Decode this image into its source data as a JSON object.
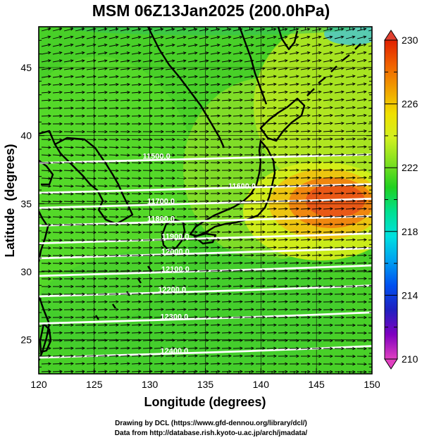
{
  "title": "MSM 06Z13Jan2025 (200.0hPa)",
  "x_axis": {
    "label": "Longitude (degrees)",
    "ticks": [
      120,
      125,
      130,
      135,
      140,
      145,
      150
    ],
    "range": [
      120,
      150
    ]
  },
  "y_axis": {
    "label": "Latitude  (degrees)",
    "ticks": [
      25,
      30,
      35,
      40,
      45
    ],
    "range": [
      22.5,
      48
    ]
  },
  "colorbar": {
    "ticks": [
      210,
      214,
      218,
      222,
      226,
      230
    ],
    "range": [
      210,
      230
    ],
    "colors": [
      "#e040c0",
      "#8000c0",
      "#2020c0",
      "#0050f0",
      "#00a0f0",
      "#00e0e0",
      "#00e090",
      "#20d020",
      "#80e020",
      "#d0f020",
      "#f0e000",
      "#f0a000",
      "#f06000",
      "#e02000"
    ]
  },
  "contour_labels": [
    {
      "text": "11500.0",
      "lon": 130.6,
      "lat": 38.3
    },
    {
      "text": "11600.0",
      "lon": 138.3,
      "lat": 36.1
    },
    {
      "text": "11700.0",
      "lon": 131.0,
      "lat": 35.0
    },
    {
      "text": "11800.0",
      "lon": 131.0,
      "lat": 33.7
    },
    {
      "text": "11900.0",
      "lon": 132.3,
      "lat": 32.4
    },
    {
      "text": "12000.0",
      "lon": 132.3,
      "lat": 31.3
    },
    {
      "text": "12100.0",
      "lon": 132.3,
      "lat": 30.0
    },
    {
      "text": "12200.0",
      "lon": 132.0,
      "lat": 28.5
    },
    {
      "text": "12300.0",
      "lon": 132.2,
      "lat": 26.5
    },
    {
      "text": "12400.0",
      "lon": 132.2,
      "lat": 24.0
    }
  ],
  "credits": {
    "line1": "Drawing by DCL (https://www.gfd-dennou.org/library/dcl/)",
    "line2": "Data from http://database.rish.kyoto-u.ac.jp/arch/jmadata/"
  }
}
